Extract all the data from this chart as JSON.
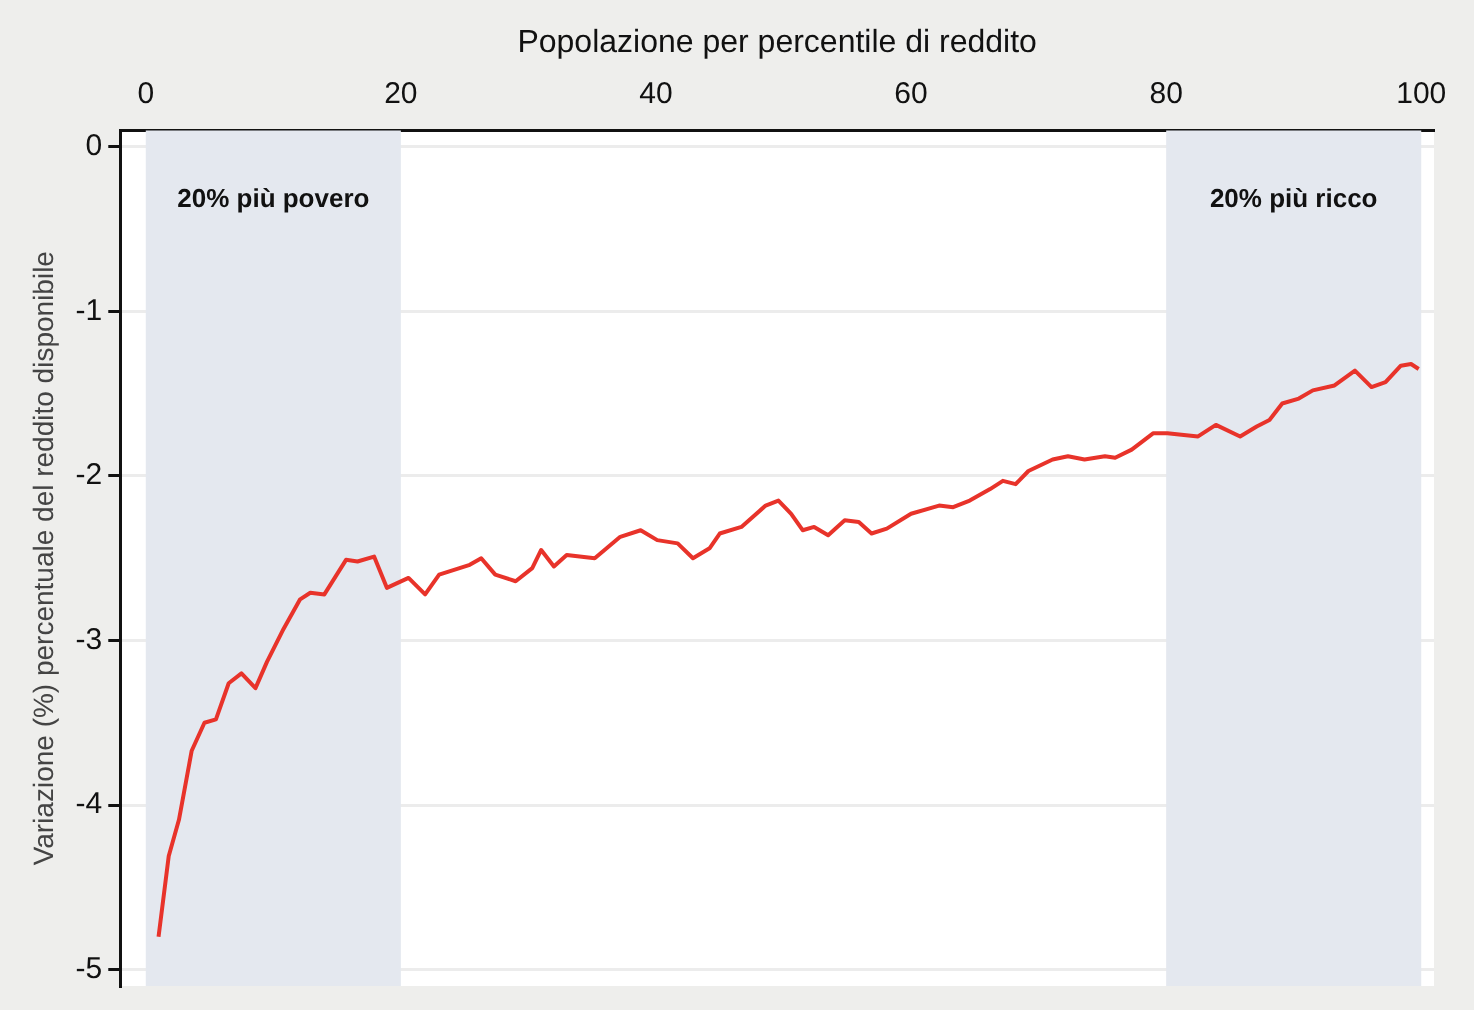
{
  "chart_data": {
    "type": "line",
    "xlabel": "Popolazione per percentile di reddito",
    "ylabel": "Variazione (%) percentuale del reddito disponibile",
    "xlim": [
      -2,
      101
    ],
    "xticks": [
      0,
      20,
      40,
      60,
      80,
      100
    ],
    "ylim": [
      -5.1,
      0.1
    ],
    "yticks": [
      -5,
      -4,
      -3,
      -2,
      -1,
      0
    ],
    "grid": "y",
    "legend": false,
    "marker": "none",
    "line_style": "solid",
    "bands": [
      {
        "axis": "x",
        "from": 0,
        "to": 20,
        "label": "20% più povero",
        "color": "#e4e8ef"
      },
      {
        "axis": "x",
        "from": 80,
        "to": 100,
        "label": "20% più ricco",
        "color": "#e4e8ef"
      }
    ],
    "series": [
      {
        "color": "#e8332a",
        "x": [
          1,
          1.8,
          2.6,
          3.6,
          4.6,
          5.5,
          6.5,
          7.5,
          8.6,
          9.5,
          10.8,
          12.1,
          12.9,
          14,
          15.7,
          16.6,
          17.9,
          18.9,
          20.6,
          21.9,
          23,
          25.4,
          26.3,
          27.4,
          29,
          30.3,
          31,
          32,
          33,
          35.2,
          37.2,
          38.8,
          40.1,
          41.7,
          42.9,
          44.2,
          45,
          46.7,
          48.6,
          49.6,
          50.6,
          51.5,
          52.4,
          53.5,
          54.8,
          55.9,
          56.9,
          58.1,
          60,
          62.2,
          63.3,
          64.6,
          66.2,
          67.2,
          68.2,
          69.2,
          71.1,
          72.3,
          73.6,
          75.2,
          76,
          77.3,
          79,
          80.1,
          81.2,
          82.5,
          83.9,
          85.8,
          87.1,
          88.1,
          89.1,
          90.4,
          91.5,
          93.2,
          94.8,
          96.1,
          97.2,
          98.4,
          99.2,
          99.8
        ],
        "values": [
          -4.8,
          -4.31,
          -4.09,
          -3.67,
          -3.5,
          -3.48,
          -3.26,
          -3.2,
          -3.29,
          -3.13,
          -2.93,
          -2.75,
          -2.71,
          -2.72,
          -2.51,
          -2.52,
          -2.49,
          -2.68,
          -2.62,
          -2.72,
          -2.6,
          -2.54,
          -2.5,
          -2.6,
          -2.64,
          -2.56,
          -2.45,
          -2.55,
          -2.48,
          -2.5,
          -2.37,
          -2.33,
          -2.39,
          -2.41,
          -2.5,
          -2.44,
          -2.35,
          -2.31,
          -2.18,
          -2.15,
          -2.23,
          -2.33,
          -2.31,
          -2.36,
          -2.27,
          -2.28,
          -2.35,
          -2.32,
          -2.23,
          -2.18,
          -2.19,
          -2.15,
          -2.08,
          -2.03,
          -2.05,
          -1.97,
          -1.9,
          -1.88,
          -1.9,
          -1.88,
          -1.89,
          -1.84,
          -1.74,
          -1.74,
          -1.75,
          -1.76,
          -1.69,
          -1.76,
          -1.7,
          -1.66,
          -1.56,
          -1.53,
          -1.48,
          -1.45,
          -1.36,
          -1.46,
          -1.43,
          -1.33,
          -1.32,
          -1.35
        ]
      }
    ]
  }
}
